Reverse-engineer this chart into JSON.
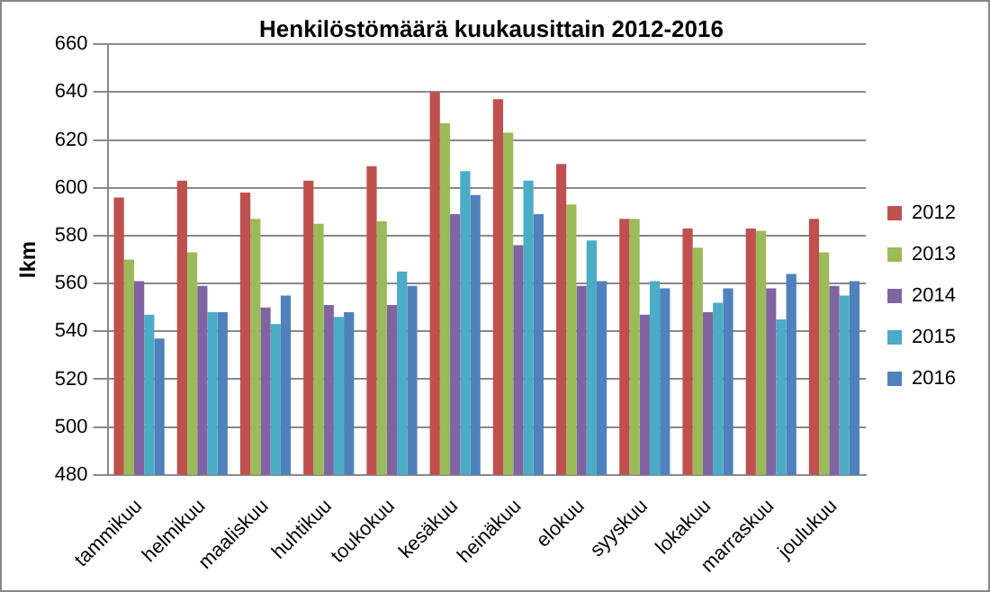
{
  "chart_data": {
    "type": "bar",
    "title": "Henkilöstömäärä kuukausittain 2012-2016",
    "ylabel": "lkm",
    "categories": [
      "tammikuu",
      "helmikuu",
      "maaliskuu",
      "huhtikuu",
      "toukokuu",
      "kesäkuu",
      "heinäkuu",
      "elokuu",
      "syyskuu",
      "lokakuu",
      "marraskuu",
      "joulukuu"
    ],
    "series": [
      {
        "name": "2012",
        "color": "#c0504d",
        "values": [
          596,
          603,
          598,
          603,
          609,
          640,
          637,
          610,
          587,
          583,
          583,
          587
        ]
      },
      {
        "name": "2013",
        "color": "#9bbb59",
        "values": [
          570,
          573,
          587,
          585,
          586,
          627,
          623,
          593,
          587,
          575,
          582,
          573
        ]
      },
      {
        "name": "2014",
        "color": "#8064a2",
        "values": [
          561,
          559,
          550,
          551,
          551,
          589,
          576,
          559,
          547,
          548,
          558,
          559
        ]
      },
      {
        "name": "2015",
        "color": "#4bacc6",
        "values": [
          547,
          548,
          543,
          546,
          565,
          607,
          603,
          578,
          561,
          552,
          545,
          555
        ]
      },
      {
        "name": "2016",
        "color": "#4f81bd",
        "values": [
          537,
          548,
          555,
          548,
          559,
          597,
          589,
          561,
          558,
          558,
          564,
          561
        ]
      }
    ],
    "ylim": [
      480,
      660
    ],
    "yticks": [
      480,
      500,
      520,
      540,
      560,
      580,
      600,
      620,
      640,
      660
    ],
    "grid": "y",
    "legend": "right"
  }
}
